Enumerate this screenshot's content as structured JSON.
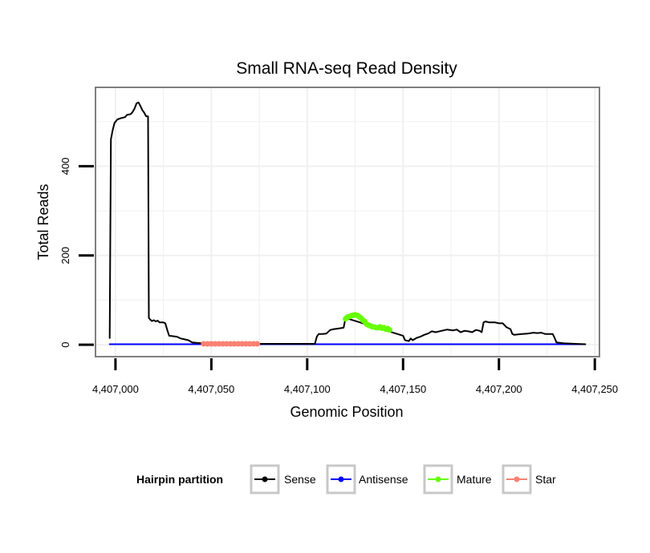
{
  "chart_data": {
    "type": "line",
    "title": "Small RNA-seq Read Density",
    "xlabel": "Genomic Position",
    "ylabel": "Total Reads",
    "xlim": [
      4406990,
      4407252
    ],
    "ylim": [
      -25,
      575
    ],
    "x_ticks": [
      4407000,
      4407050,
      4407100,
      4407150,
      4407200,
      4407250
    ],
    "x_tick_labels": [
      "4,407,000",
      "4,407,050",
      "4,407,100",
      "4,407,150",
      "4,407,200",
      "4,407,250"
    ],
    "y_ticks": [
      0,
      200,
      400
    ],
    "y_tick_labels": [
      "0",
      "200",
      "400"
    ],
    "grid": true,
    "legend": {
      "title": "Hairpin partition",
      "position": "bottom",
      "entries": [
        {
          "name": "Sense",
          "color": "#000000"
        },
        {
          "name": "Antisense",
          "color": "#0000ff"
        },
        {
          "name": "Mature",
          "color": "#66ff00"
        },
        {
          "name": "Star",
          "color": "#fa8072"
        }
      ]
    },
    "series": [
      {
        "name": "Sense",
        "color": "#000000",
        "points": [
          [
            4406997,
            15
          ],
          [
            4406997.6,
            460
          ],
          [
            4406998.5,
            480
          ],
          [
            4406999.5,
            497
          ],
          [
            4407001,
            505
          ],
          [
            4407003,
            508
          ],
          [
            4407005,
            510
          ],
          [
            4407006,
            515
          ],
          [
            4407008,
            517
          ],
          [
            4407009,
            522
          ],
          [
            4407010,
            530
          ],
          [
            4407011,
            541
          ],
          [
            4407012,
            543
          ],
          [
            4407013,
            535
          ],
          [
            4407014,
            526
          ],
          [
            4407015,
            520
          ],
          [
            4407016,
            512
          ],
          [
            4407017,
            512
          ],
          [
            4407017.4,
            60
          ],
          [
            4407018,
            57
          ],
          [
            4407019,
            53
          ],
          [
            4407020,
            55
          ],
          [
            4407021,
            52
          ],
          [
            4407022,
            54
          ],
          [
            4407023,
            50
          ],
          [
            4407025,
            50
          ],
          [
            4407026,
            48
          ],
          [
            4407027,
            33
          ],
          [
            4407028,
            20
          ],
          [
            4407030,
            19
          ],
          [
            4407032,
            18
          ],
          [
            4407034,
            14
          ],
          [
            4407036,
            12
          ],
          [
            4407038,
            10
          ],
          [
            4407040,
            5
          ],
          [
            4407045,
            3
          ],
          [
            4407060,
            2
          ],
          [
            4407075,
            2
          ],
          [
            4407090,
            2
          ],
          [
            4407102,
            2
          ],
          [
            4407104,
            2
          ],
          [
            4407105,
            18
          ],
          [
            4407106,
            24
          ],
          [
            4407108,
            24
          ],
          [
            4407110,
            25
          ],
          [
            4407112,
            33
          ],
          [
            4407114,
            35
          ],
          [
            4407116,
            36
          ],
          [
            4407119,
            38
          ],
          [
            4407120,
            60
          ],
          [
            4407150,
            20
          ],
          [
            4407151,
            10
          ],
          [
            4407153,
            8
          ],
          [
            4407154,
            14
          ],
          [
            4407155,
            10
          ],
          [
            4407157,
            15
          ],
          [
            4407159,
            18
          ],
          [
            4407161,
            22
          ],
          [
            4407163,
            25
          ],
          [
            4407165,
            30
          ],
          [
            4407167,
            28
          ],
          [
            4407170,
            31
          ],
          [
            4407173,
            34
          ],
          [
            4407176,
            32
          ],
          [
            4407178,
            34
          ],
          [
            4407180,
            28
          ],
          [
            4407182,
            31
          ],
          [
            4407184,
            30
          ],
          [
            4407186,
            28
          ],
          [
            4407188,
            33
          ],
          [
            4407190,
            31
          ],
          [
            4407191,
            28
          ],
          [
            4407192,
            50
          ],
          [
            4407193,
            52
          ],
          [
            4407195,
            50
          ],
          [
            4407198,
            50
          ],
          [
            4407200,
            48
          ],
          [
            4407202,
            48
          ],
          [
            4407204,
            39
          ],
          [
            4407206,
            35
          ],
          [
            4407207,
            24
          ],
          [
            4407208,
            22
          ],
          [
            4407212,
            24
          ],
          [
            4407215,
            25
          ],
          [
            4407218,
            27
          ],
          [
            4407220,
            26
          ],
          [
            4407222,
            27
          ],
          [
            4407224,
            24
          ],
          [
            4407228,
            24
          ],
          [
            4407229,
            16
          ],
          [
            4407230,
            5
          ],
          [
            4407234,
            3
          ],
          [
            4407240,
            2
          ],
          [
            4407245,
            1
          ]
        ]
      },
      {
        "name": "Antisense",
        "color": "#0000ff",
        "points": [
          [
            4406997,
            1
          ],
          [
            4407245,
            1
          ]
        ]
      },
      {
        "name": "Mature",
        "color": "#66ff00",
        "points": [
          [
            4407120,
            58
          ],
          [
            4407121,
            62
          ],
          [
            4407122,
            63
          ],
          [
            4407123,
            65
          ],
          [
            4407124,
            66
          ],
          [
            4407125,
            67
          ],
          [
            4407126,
            66
          ],
          [
            4407127,
            63
          ],
          [
            4407128,
            60
          ],
          [
            4407129,
            55
          ],
          [
            4407130,
            52
          ],
          [
            4407131,
            46
          ],
          [
            4407132,
            44
          ],
          [
            4407133,
            42
          ],
          [
            4407134,
            40
          ],
          [
            4407135,
            40
          ],
          [
            4407136,
            38
          ],
          [
            4407137,
            38
          ],
          [
            4407138,
            40
          ],
          [
            4407139,
            37
          ],
          [
            4407140,
            38
          ],
          [
            4407141,
            35
          ],
          [
            4407142,
            36
          ],
          [
            4407143,
            33
          ]
        ]
      },
      {
        "name": "Star",
        "color": "#fa8072",
        "points": [
          [
            4407046,
            2
          ],
          [
            4407048,
            2
          ],
          [
            4407050,
            2
          ],
          [
            4407052,
            2
          ],
          [
            4407054,
            2
          ],
          [
            4407056,
            2
          ],
          [
            4407058,
            2
          ],
          [
            4407060,
            2
          ],
          [
            4407062,
            2
          ],
          [
            4407064,
            2
          ],
          [
            4407066,
            2
          ],
          [
            4407068,
            2
          ],
          [
            4407070,
            2
          ],
          [
            4407072,
            2
          ],
          [
            4407074,
            2
          ]
        ]
      }
    ]
  }
}
